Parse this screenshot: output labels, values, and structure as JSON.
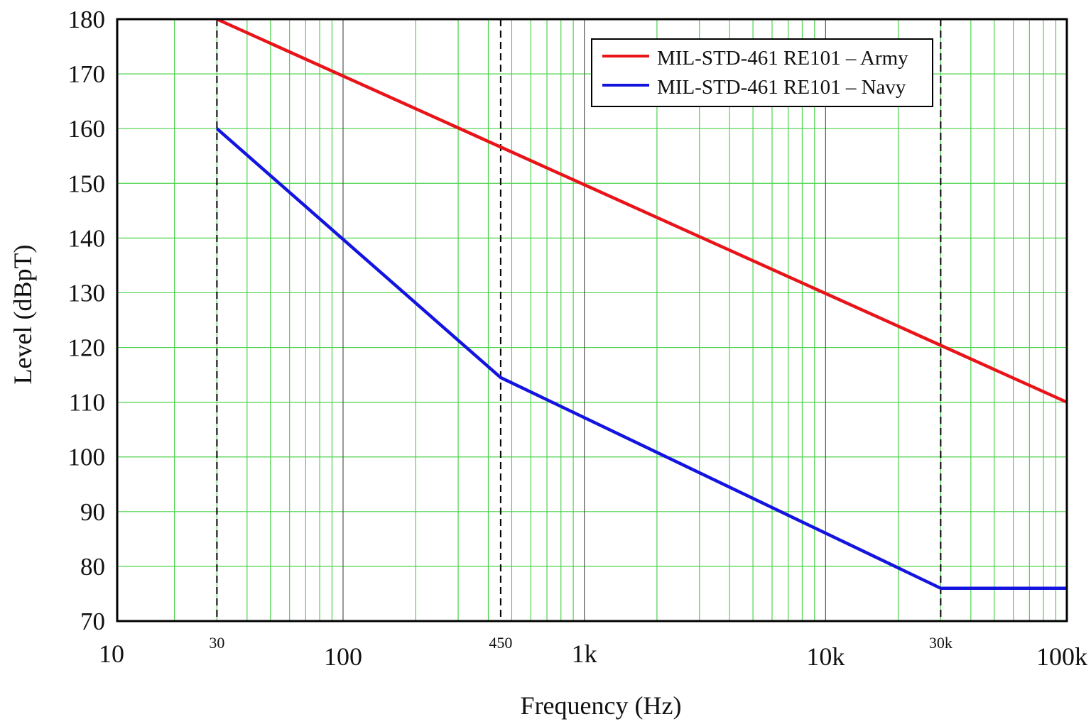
{
  "chart_data": {
    "type": "line",
    "title": "",
    "xlabel": "Frequency (Hz)",
    "ylabel": "Level (dBpT)",
    "xscale": "log",
    "xlim": [
      10,
      100000
    ],
    "ylim": [
      70,
      180
    ],
    "grid": true,
    "grid_color": "#4cd34c",
    "legend_position": "top-right",
    "x_ticks": [
      {
        "value": 10,
        "label": "10",
        "major": true
      },
      {
        "value": 30,
        "label": "30",
        "major": false
      },
      {
        "value": 100,
        "label": "100",
        "major": true
      },
      {
        "value": 450,
        "label": "450",
        "major": false
      },
      {
        "value": 1000,
        "label": "1k",
        "major": true
      },
      {
        "value": 10000,
        "label": "10k",
        "major": true
      },
      {
        "value": 30000,
        "label": "30k",
        "major": false
      },
      {
        "value": 100000,
        "label": "100k",
        "major": true
      }
    ],
    "dashed_markers": [
      30,
      450,
      30000
    ],
    "y_ticks": [
      70,
      80,
      90,
      100,
      110,
      120,
      130,
      140,
      150,
      160,
      170,
      180
    ],
    "series": [
      {
        "name": "MIL-STD-461 RE101 – Army",
        "color": "#e8141a",
        "x": [
          30,
          100000
        ],
        "y": [
          180,
          110
        ]
      },
      {
        "name": "MIL-STD-461 RE101 – Navy",
        "color": "#1414e0",
        "x": [
          30,
          450,
          30000,
          100000
        ],
        "y": [
          160,
          114.5,
          76,
          76
        ]
      }
    ]
  }
}
